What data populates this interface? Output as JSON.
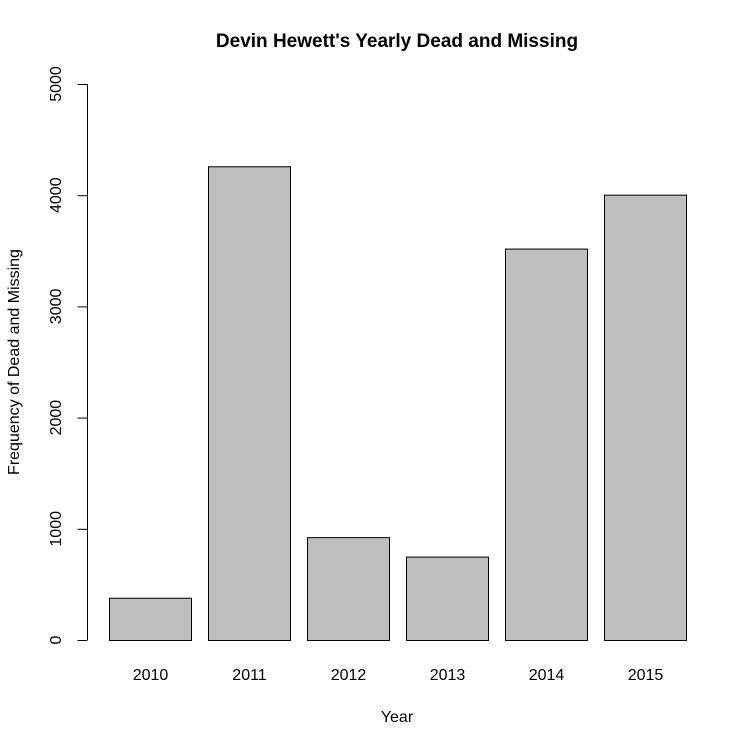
{
  "chart_data": {
    "type": "bar",
    "title": "Devin Hewett's Yearly Dead and Missing",
    "xlabel": "Year",
    "ylabel": "Frequency of Dead and Missing",
    "categories": [
      "2010",
      "2011",
      "2012",
      "2013",
      "2014",
      "2015"
    ],
    "values": [
      380,
      4260,
      925,
      750,
      3520,
      4005
    ],
    "ylim": [
      0,
      5000
    ],
    "yticks": [
      "0",
      "1000",
      "2000",
      "3000",
      "4000",
      "5000"
    ],
    "grid": false,
    "colors": {
      "bar_fill": "#bebebe",
      "bar_stroke": "#000000"
    }
  }
}
